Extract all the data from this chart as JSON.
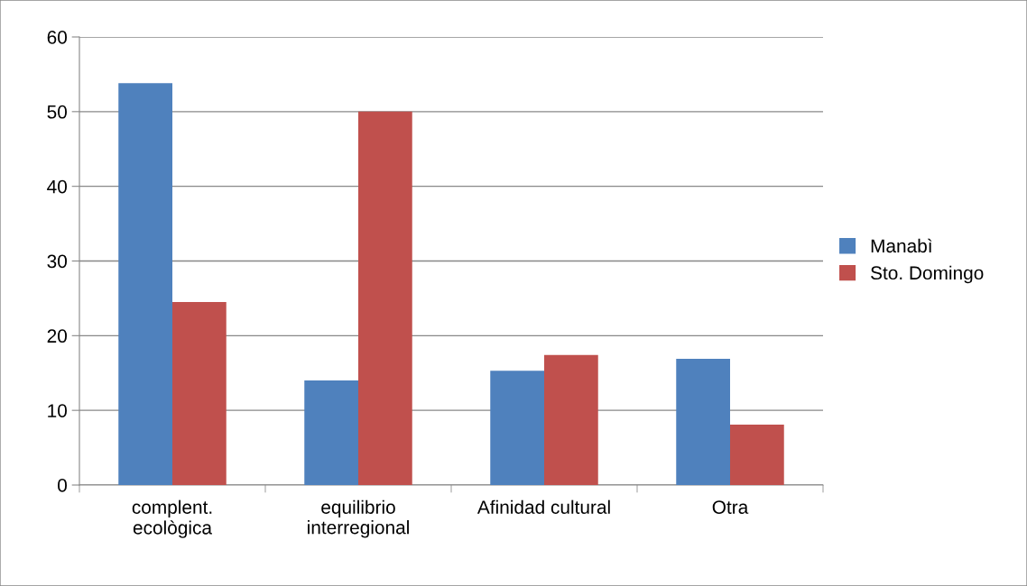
{
  "chart_data": {
    "type": "bar",
    "categories": [
      "complent.\necològica",
      "equilibrio\ninterregional",
      "Afinidad cultural",
      "Otra"
    ],
    "series": [
      {
        "name": "Manabì",
        "color": "#4f81bd",
        "values": [
          53.8,
          14,
          15.3,
          16.9
        ]
      },
      {
        "name": "Sto. Domingo",
        "color": "#c0504d",
        "values": [
          24.5,
          50,
          17.4,
          8.1
        ]
      }
    ],
    "ylim": [
      0,
      60
    ],
    "yticks": [
      0,
      10,
      20,
      30,
      40,
      50,
      60
    ],
    "grid": "y",
    "legend": "right"
  }
}
